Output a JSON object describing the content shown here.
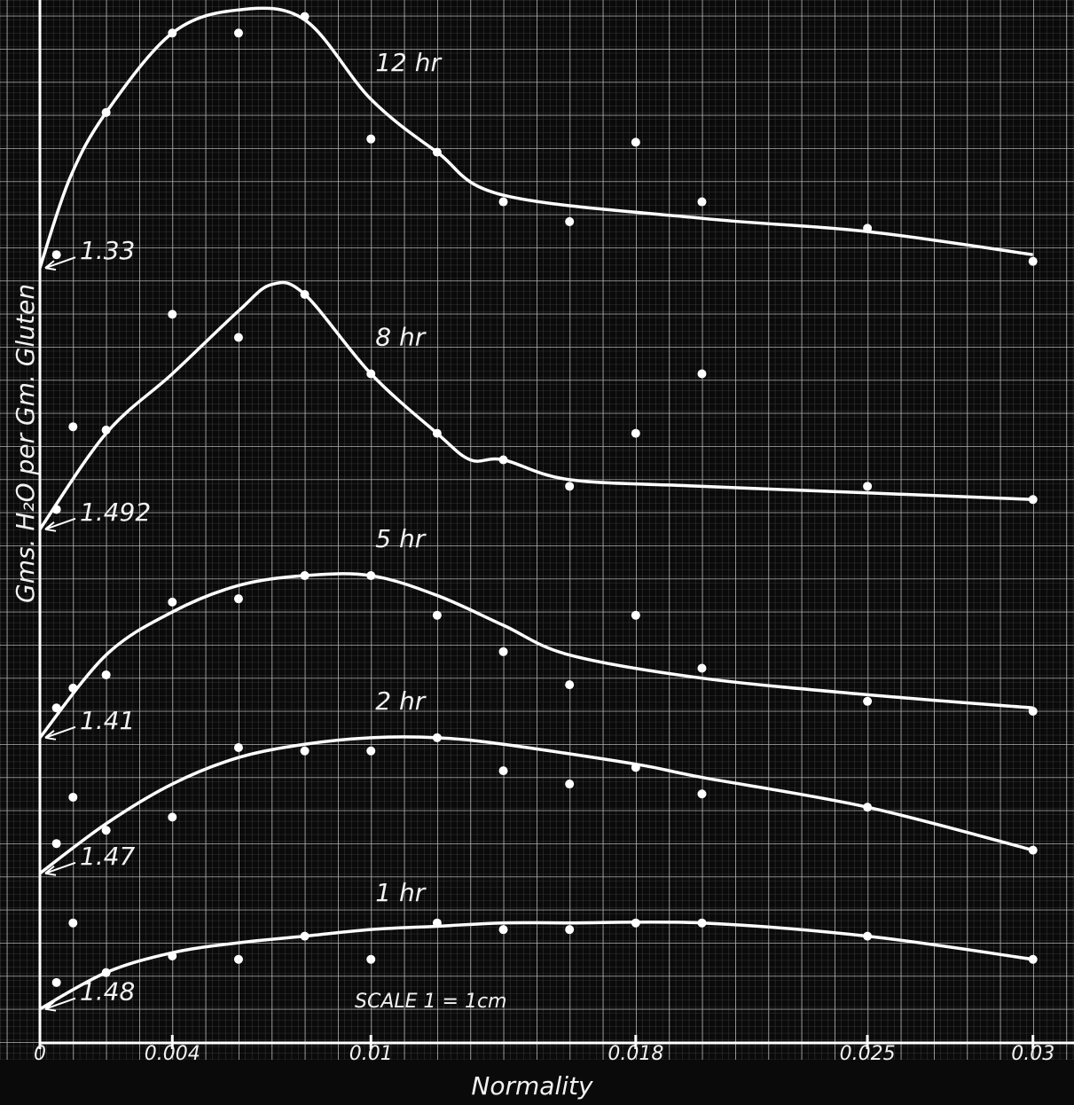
{
  "chart_data": {
    "type": "line",
    "x_label": "Normality",
    "y_label": "Gms. H₂O per Gm. Gluten",
    "annotation": "SCALE 1 = 1cm",
    "xlim": [
      0,
      0.03124
    ],
    "xticks": [
      0,
      0.004,
      0.01,
      0.018,
      0.025,
      0.03
    ],
    "ylim": [
      0,
      31.5
    ],
    "grid": true,
    "color": "#ffffff",
    "series": [
      {
        "name": "12 hr",
        "start_label": "1.33",
        "x": [
          0,
          0.0009,
          0.002,
          0.004,
          0.006,
          0.008,
          0.01,
          0.012,
          0.014,
          0.02,
          0.025,
          0.03
        ],
        "values": [
          23.4,
          26.1,
          28.1,
          30.5,
          31.2,
          30.9,
          28.5,
          26.9,
          25.6,
          24.9,
          24.5,
          23.8
        ],
        "markers": {
          "x": [
            0.0005,
            0.002,
            0.004,
            0.006,
            0.008,
            0.01,
            0.012,
            0.014,
            0.016,
            0.018,
            0.02,
            0.025,
            0.03
          ],
          "values": [
            23.8,
            28.1,
            30.5,
            30.5,
            31.0,
            27.3,
            26.9,
            25.4,
            24.8,
            27.2,
            25.4,
            24.6,
            23.6
          ]
        }
      },
      {
        "name": "8 hr",
        "start_label": "1.492",
        "x": [
          0,
          0.002,
          0.004,
          0.006,
          0.007,
          0.008,
          0.01,
          0.012,
          0.013,
          0.014,
          0.016,
          0.02,
          0.025,
          0.03
        ],
        "values": [
          15.5,
          18.4,
          20.2,
          22.1,
          22.9,
          22.6,
          20.2,
          18.4,
          17.6,
          17.6,
          17.0,
          16.8,
          16.6,
          16.4
        ],
        "markers": {
          "x": [
            0.0005,
            0.001,
            0.002,
            0.004,
            0.006,
            0.008,
            0.01,
            0.012,
            0.014,
            0.016,
            0.018,
            0.02,
            0.025,
            0.03
          ],
          "values": [
            16.1,
            18.6,
            18.5,
            22.0,
            21.3,
            22.6,
            20.2,
            18.4,
            17.6,
            16.8,
            18.4,
            20.2,
            16.8,
            16.4
          ]
        }
      },
      {
        "name": "5 hr",
        "start_label": "1.41",
        "x": [
          0,
          0.002,
          0.004,
          0.006,
          0.008,
          0.01,
          0.012,
          0.014,
          0.016,
          0.02,
          0.025,
          0.03
        ],
        "values": [
          9.2,
          11.7,
          13.0,
          13.8,
          14.1,
          14.1,
          13.5,
          12.6,
          11.7,
          11.0,
          10.5,
          10.1
        ],
        "markers": {
          "x": [
            0.0005,
            0.001,
            0.002,
            0.004,
            0.006,
            0.008,
            0.01,
            0.012,
            0.014,
            0.016,
            0.018,
            0.02,
            0.025,
            0.03
          ],
          "values": [
            10.1,
            10.7,
            11.1,
            13.3,
            13.4,
            14.1,
            14.1,
            12.9,
            11.8,
            10.8,
            12.9,
            11.3,
            10.3,
            10.0
          ]
        }
      },
      {
        "name": "2 hr",
        "start_label": "1.47",
        "x": [
          0,
          0.002,
          0.004,
          0.006,
          0.008,
          0.01,
          0.012,
          0.014,
          0.018,
          0.02,
          0.025,
          0.03
        ],
        "values": [
          5.1,
          6.6,
          7.8,
          8.6,
          9.0,
          9.2,
          9.2,
          9.0,
          8.4,
          8.0,
          7.1,
          5.8
        ],
        "markers": {
          "x": [
            0.0005,
            0.001,
            0.002,
            0.004,
            0.006,
            0.008,
            0.01,
            0.012,
            0.014,
            0.016,
            0.018,
            0.02,
            0.025,
            0.03
          ],
          "values": [
            6.0,
            7.4,
            6.4,
            6.8,
            8.9,
            8.8,
            8.8,
            9.2,
            8.2,
            7.8,
            8.3,
            7.5,
            7.1,
            5.8
          ]
        }
      },
      {
        "name": "1 hr",
        "start_label": "1.48",
        "x": [
          0,
          0.002,
          0.004,
          0.006,
          0.008,
          0.01,
          0.012,
          0.014,
          0.016,
          0.02,
          0.025,
          0.03
        ],
        "values": [
          1.0,
          2.1,
          2.7,
          3.0,
          3.2,
          3.4,
          3.5,
          3.6,
          3.6,
          3.6,
          3.2,
          2.5
        ],
        "markers": {
          "x": [
            0.0005,
            0.001,
            0.002,
            0.004,
            0.006,
            0.008,
            0.01,
            0.012,
            0.014,
            0.016,
            0.018,
            0.02,
            0.025,
            0.03
          ],
          "values": [
            1.8,
            3.6,
            2.1,
            2.6,
            2.5,
            3.2,
            2.5,
            3.6,
            3.4,
            3.4,
            3.6,
            3.6,
            3.2,
            2.5
          ]
        }
      }
    ]
  }
}
